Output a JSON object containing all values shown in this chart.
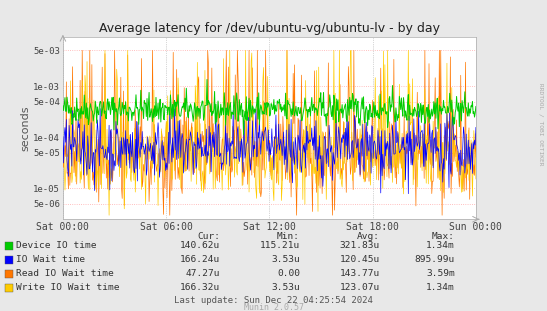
{
  "title": "Average latency for /dev/ubuntu-vg/ubuntu-lv - by day",
  "ylabel": "seconds",
  "right_label": "RRDTOOL / TOBI OETIKER",
  "x_ticks_labels": [
    "Sat 00:00",
    "Sat 06:00",
    "Sat 12:00",
    "Sat 18:00",
    "Sun 00:00"
  ],
  "y_ticks": [
    5e-06,
    1e-05,
    5e-05,
    0.0001,
    0.0005,
    0.001,
    0.005
  ],
  "y_tick_labels": [
    "5e-06",
    "1e-05",
    "5e-05",
    "1e-04",
    "5e-04",
    "1e-03",
    "5e-03"
  ],
  "ylim_min": 2.5e-06,
  "ylim_max": 0.009,
  "background_color": "#e8e8e8",
  "plot_bg_color": "#ffffff",
  "red_grid_color": "#ffaaaa",
  "dot_grid_color": "#cccccc",
  "line_colors": {
    "device_io": "#00cc00",
    "io_wait": "#0000ff",
    "read_io_wait": "#ff7700",
    "write_io_wait": "#ffcc00"
  },
  "legend_items": [
    {
      "label": "Device IO time",
      "color": "#00cc00"
    },
    {
      "label": "IO Wait time",
      "color": "#0000ff"
    },
    {
      "label": "Read IO Wait time",
      "color": "#ff7700"
    },
    {
      "label": "Write IO Wait time",
      "color": "#ffcc00"
    }
  ],
  "stats_headers": [
    "Cur:",
    "Min:",
    "Avg:",
    "Max:"
  ],
  "stats_rows": [
    [
      "Device IO time",
      "140.62u",
      "115.21u",
      "321.83u",
      "1.34m"
    ],
    [
      "IO Wait time",
      "166.24u",
      "3.53u",
      "120.45u",
      "895.99u"
    ],
    [
      "Read IO Wait time",
      "47.27u",
      "0.00",
      "143.77u",
      "3.59m"
    ],
    [
      "Write IO Wait time",
      "166.32u",
      "3.53u",
      "123.07u",
      "1.34m"
    ]
  ],
  "footer": "Last update: Sun Dec 22 04:25:54 2024",
  "munin_version": "Munin 2.0.57",
  "n_points": 600,
  "seed": 42
}
